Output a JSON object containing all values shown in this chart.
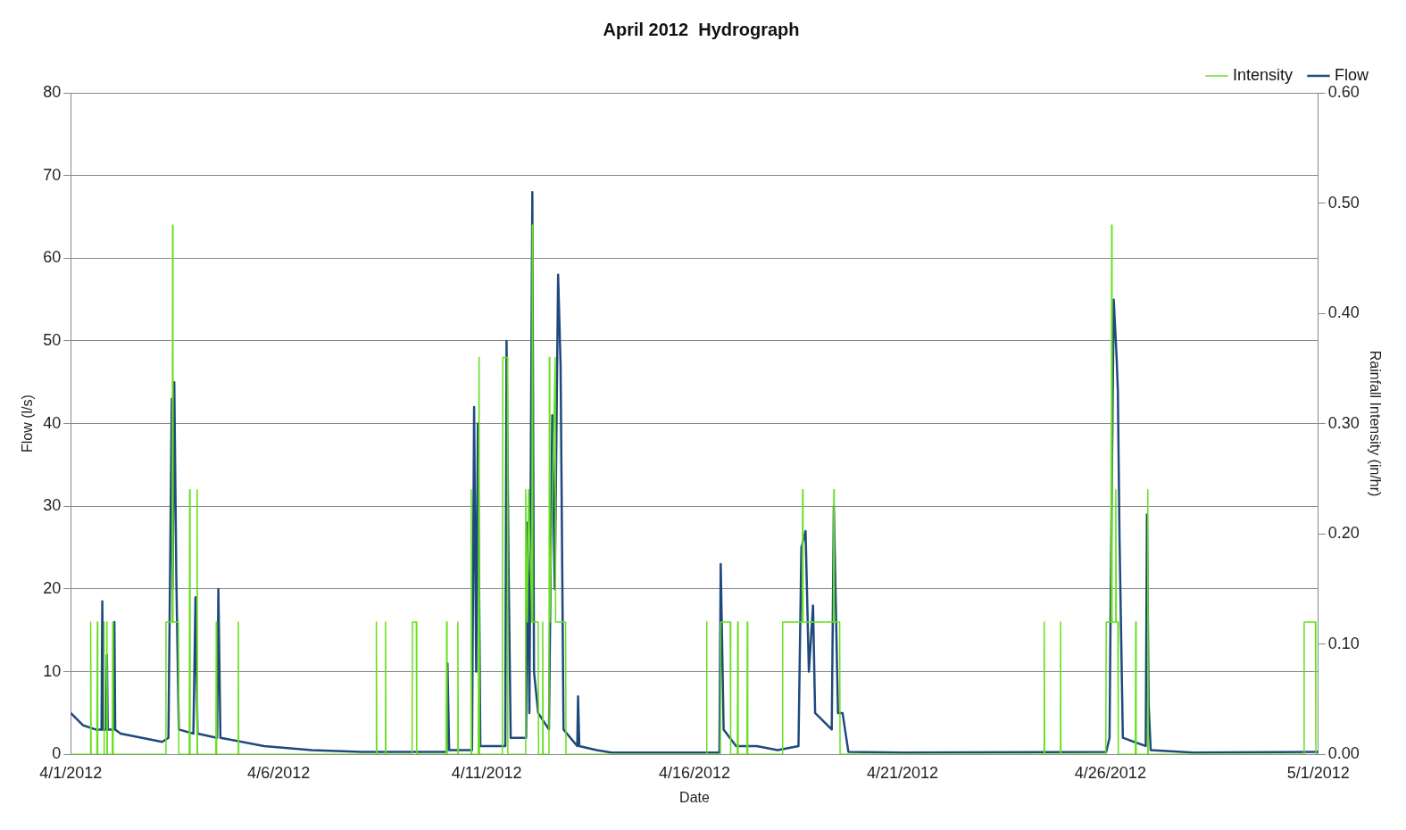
{
  "chart_data": {
    "type": "line",
    "title": "April 2012  Hydrograph",
    "xlabel": "Date",
    "ylabel": "Flow (l/s)",
    "y2label": "Rainfall Intensity (in/hr)",
    "xlim": [
      "2012-04-01",
      "2012-05-01"
    ],
    "xticks": [
      {
        "value": "2012-04-01",
        "label": "4/1/2012"
      },
      {
        "value": "2012-04-06",
        "label": "4/6/2012"
      },
      {
        "value": "2012-04-11",
        "label": "4/11/2012"
      },
      {
        "value": "2012-04-16",
        "label": "4/16/2012"
      },
      {
        "value": "2012-04-21",
        "label": "4/21/2012"
      },
      {
        "value": "2012-04-26",
        "label": "4/26/2012"
      },
      {
        "value": "2012-05-01",
        "label": "5/1/2012"
      }
    ],
    "ylim": [
      0,
      80
    ],
    "yticks": [
      0,
      10,
      20,
      30,
      40,
      50,
      60,
      70,
      80
    ],
    "y2lim": [
      0,
      0.6
    ],
    "y2ticks": [
      {
        "value": 0,
        "label": "0.00"
      },
      {
        "value": 0.1,
        "label": "0.10"
      },
      {
        "value": 0.2,
        "label": "0.20"
      },
      {
        "value": 0.3,
        "label": "0.30"
      },
      {
        "value": 0.4,
        "label": "0.40"
      },
      {
        "value": 0.5,
        "label": "0.50"
      },
      {
        "value": 0.6,
        "label": "0.60"
      }
    ],
    "grid": "y",
    "legend": "top right",
    "marker": "none",
    "line_style": "solid",
    "series": [
      {
        "name": "Flow",
        "color": "#1f497d",
        "x": [
          "2012-04-01T00:00",
          "2012-04-01T07:12",
          "2012-04-01T14:24",
          "2012-04-01T17:46",
          "2012-04-01T18:14",
          "2012-04-01T18:43",
          "2012-04-01T20:24",
          "2012-04-01T20:53",
          "2012-04-01T21:22",
          "2012-04-02T00:43",
          "2012-04-02T01:12",
          "2012-04-02T01:41",
          "2012-04-02T04:48",
          "2012-04-03T04:48",
          "2012-04-03T08:24",
          "2012-04-03T10:19",
          "2012-04-03T10:48",
          "2012-04-03T11:46",
          "2012-04-03T12:58",
          "2012-04-03T14:24",
          "2012-04-03T22:48",
          "2012-04-04T00:00",
          "2012-04-04T01:12",
          "2012-04-04T12:29",
          "2012-04-04T13:12",
          "2012-04-04T14:24",
          "2012-04-05T15:36",
          "2012-04-06T18:58",
          "2012-04-08T00:00",
          "2012-04-10T00:58",
          "2012-04-10T01:26",
          "2012-04-10T02:24",
          "2012-04-10T15:36",
          "2012-04-10T16:48",
          "2012-04-10T18:00",
          "2012-04-10T18:58",
          "2012-04-10T20:24",
          "2012-04-11T10:48",
          "2012-04-11T11:31",
          "2012-04-11T12:43",
          "2012-04-11T13:55",
          "2012-04-11T22:48",
          "2012-04-11T23:31",
          "2012-04-12T00:43",
          "2012-04-12T02:24",
          "2012-04-12T03:22",
          "2012-04-12T05:46",
          "2012-04-12T12:00",
          "2012-04-12T13:55",
          "2012-04-12T15:22",
          "2012-04-12T17:17",
          "2012-04-12T18:43",
          "2012-04-12T20:24",
          "2012-04-13T04:19",
          "2012-04-13T04:48",
          "2012-04-13T05:31",
          "2012-04-13T15:36",
          "2012-04-14T00:00",
          "2012-04-16T14:24",
          "2012-04-16T15:07",
          "2012-04-16T16:48",
          "2012-04-17T00:00",
          "2012-04-17T12:00",
          "2012-04-18T00:00",
          "2012-04-18T12:00",
          "2012-04-18T13:41",
          "2012-04-18T16:05",
          "2012-04-18T18:00",
          "2012-04-18T20:24",
          "2012-04-18T21:36",
          "2012-04-19T07:12",
          "2012-04-19T08:24",
          "2012-04-19T10:48",
          "2012-04-19T13:26",
          "2012-04-19T16:48",
          "2012-04-21T00:00",
          "2012-04-25T21:36",
          "2012-04-25T23:31",
          "2012-04-26T00:14",
          "2012-04-26T01:55",
          "2012-04-26T03:36",
          "2012-04-26T04:19",
          "2012-04-26T05:17",
          "2012-04-26T07:12",
          "2012-04-26T20:24",
          "2012-04-26T21:07",
          "2012-04-26T22:05",
          "2012-04-26T23:17",
          "2012-04-28T00:00",
          "2012-05-01T00:00"
        ],
        "values": [
          5,
          3.5,
          3,
          3,
          18.5,
          3,
          3,
          12,
          3,
          3,
          16,
          3,
          2.5,
          1.5,
          2,
          43,
          20,
          45,
          21,
          3,
          2.5,
          19,
          2.5,
          2,
          20,
          2,
          1,
          0.5,
          0.3,
          0.3,
          11,
          0.5,
          0.5,
          42,
          10,
          40,
          1,
          1,
          50,
          22,
          2,
          2,
          28,
          5,
          68,
          10,
          5,
          3,
          41,
          20,
          58,
          47,
          3,
          1,
          7,
          1,
          0.5,
          0.2,
          0.2,
          23,
          3,
          1,
          1,
          0.5,
          1,
          25,
          27,
          10,
          18,
          5,
          3,
          30,
          5,
          5,
          0.3,
          0.2,
          0.3,
          2,
          20,
          55,
          48,
          44,
          26,
          2,
          1,
          29,
          6,
          0.5,
          0.2,
          0.3
        ]
      },
      {
        "name": "Intensity",
        "color": "#66e01f",
        "axis": "y2",
        "x": [
          "2012-04-01T00:00",
          "2012-04-01T11:17",
          "2012-04-01T11:31",
          "2012-04-01T11:46",
          "2012-04-01T15:07",
          "2012-04-01T15:22",
          "2012-04-01T15:36",
          "2012-04-01T18:58",
          "2012-04-01T19:12",
          "2012-04-01T19:26",
          "2012-04-01T20:38",
          "2012-04-01T20:53",
          "2012-04-01T21:07",
          "2012-04-02T00:00",
          "2012-04-02T00:14",
          "2012-04-02T00:29",
          "2012-04-03T06:43",
          "2012-04-03T06:58",
          "2012-04-03T08:24",
          "2012-04-03T10:34",
          "2012-04-03T10:48",
          "2012-04-03T11:02",
          "2012-04-03T14:10",
          "2012-04-03T14:24",
          "2012-04-03T20:24",
          "2012-04-03T20:38",
          "2012-04-03T20:53",
          "2012-04-04T00:43",
          "2012-04-04T00:58",
          "2012-04-04T01:12",
          "2012-04-04T11:46",
          "2012-04-04T12:00",
          "2012-04-04T12:14",
          "2012-04-05T00:29",
          "2012-04-05T00:43",
          "2012-04-05T00:58",
          "2012-04-08T08:10",
          "2012-04-08T08:24",
          "2012-04-08T08:38",
          "2012-04-08T13:26",
          "2012-04-08T13:41",
          "2012-04-08T13:55",
          "2012-04-09T05:02",
          "2012-04-09T05:17",
          "2012-04-09T07:26",
          "2012-04-09T07:41",
          "2012-04-10T00:43",
          "2012-04-10T00:58",
          "2012-04-10T01:12",
          "2012-04-10T07:12",
          "2012-04-10T07:26",
          "2012-04-10T07:41",
          "2012-04-10T14:53",
          "2012-04-10T15:07",
          "2012-04-10T15:22",
          "2012-04-10T19:12",
          "2012-04-10T19:41",
          "2012-04-10T19:55",
          "2012-04-11T09:07",
          "2012-04-11T09:22",
          "2012-04-11T12:00",
          "2012-04-11T12:14",
          "2012-04-11T22:19",
          "2012-04-11T22:34",
          "2012-04-11T23:31",
          "2012-04-12T00:14",
          "2012-04-12T02:10",
          "2012-04-12T02:24",
          "2012-04-12T02:38",
          "2012-04-12T05:46",
          "2012-04-12T06:00",
          "2012-04-12T08:10",
          "2012-04-12T08:24",
          "2012-04-12T08:38",
          "2012-04-12T12:00",
          "2012-04-12T12:14",
          "2012-04-12T12:29",
          "2012-04-12T15:36",
          "2012-04-12T15:50",
          "2012-04-12T21:36",
          "2012-04-12T21:50",
          "2012-04-16T06:43",
          "2012-04-16T06:58",
          "2012-04-16T07:12",
          "2012-04-16T14:53",
          "2012-04-16T15:07",
          "2012-04-16T20:38",
          "2012-04-16T20:53",
          "2012-04-17T00:43",
          "2012-04-17T00:58",
          "2012-04-17T01:12",
          "2012-04-17T06:14",
          "2012-04-17T06:29",
          "2012-04-17T06:43",
          "2012-04-18T02:38",
          "2012-04-18T02:53",
          "2012-04-18T14:10",
          "2012-04-18T14:24",
          "2012-04-18T14:38",
          "2012-04-19T08:10",
          "2012-04-19T08:24",
          "2012-04-19T08:38",
          "2012-04-19T11:46",
          "2012-04-19T12:00",
          "2012-04-24T09:36",
          "2012-04-24T09:50",
          "2012-04-24T10:05",
          "2012-04-24T18:58",
          "2012-04-24T19:12",
          "2012-04-24T19:26",
          "2012-04-25T21:22",
          "2012-04-25T21:36",
          "2012-04-26T00:29",
          "2012-04-26T00:43",
          "2012-04-26T00:58",
          "2012-04-26T02:53",
          "2012-04-26T03:07",
          "2012-04-26T03:22",
          "2012-04-26T04:19",
          "2012-04-26T04:34",
          "2012-04-26T14:24",
          "2012-04-26T14:38",
          "2012-04-26T14:53",
          "2012-04-26T21:22",
          "2012-04-26T21:36",
          "2012-04-26T21:50",
          "2012-04-30T15:36",
          "2012-04-30T15:50",
          "2012-04-30T22:19",
          "2012-04-30T22:34",
          "2012-05-01T00:00"
        ],
        "values": [
          0,
          0,
          0.12,
          0,
          0,
          0.12,
          0,
          0,
          0.12,
          0,
          0,
          0.12,
          0,
          0,
          0.12,
          0,
          0,
          0.12,
          0.12,
          0.12,
          0.48,
          0.12,
          0.12,
          0,
          0,
          0.24,
          0,
          0,
          0.24,
          0,
          0,
          0.12,
          0,
          0,
          0.12,
          0,
          0,
          0.12,
          0,
          0,
          0.12,
          0,
          0,
          0.12,
          0.12,
          0,
          0,
          0.12,
          0,
          0,
          0.12,
          0,
          0,
          0.24,
          0,
          0,
          0.36,
          0,
          0,
          0.36,
          0.36,
          0,
          0,
          0.24,
          0.12,
          0.24,
          0.12,
          0.48,
          0.12,
          0.12,
          0,
          0,
          0.12,
          0,
          0,
          0.36,
          0.12,
          0.36,
          0.12,
          0.12,
          0,
          0,
          0.12,
          0,
          0,
          0.12,
          0.12,
          0,
          0,
          0.12,
          0,
          0,
          0.12,
          0,
          0,
          0.12,
          0.12,
          0.24,
          0.12,
          0.12,
          0.24,
          0.12,
          0.12,
          0,
          0,
          0.12,
          0,
          0,
          0.12,
          0,
          0,
          0.12,
          0.12,
          0.48,
          0.12,
          0.12,
          0.24,
          0.12,
          0.12,
          0,
          0,
          0.12,
          0,
          0,
          0.24,
          0,
          0,
          0.12,
          0.12,
          0,
          0
        ]
      }
    ]
  }
}
